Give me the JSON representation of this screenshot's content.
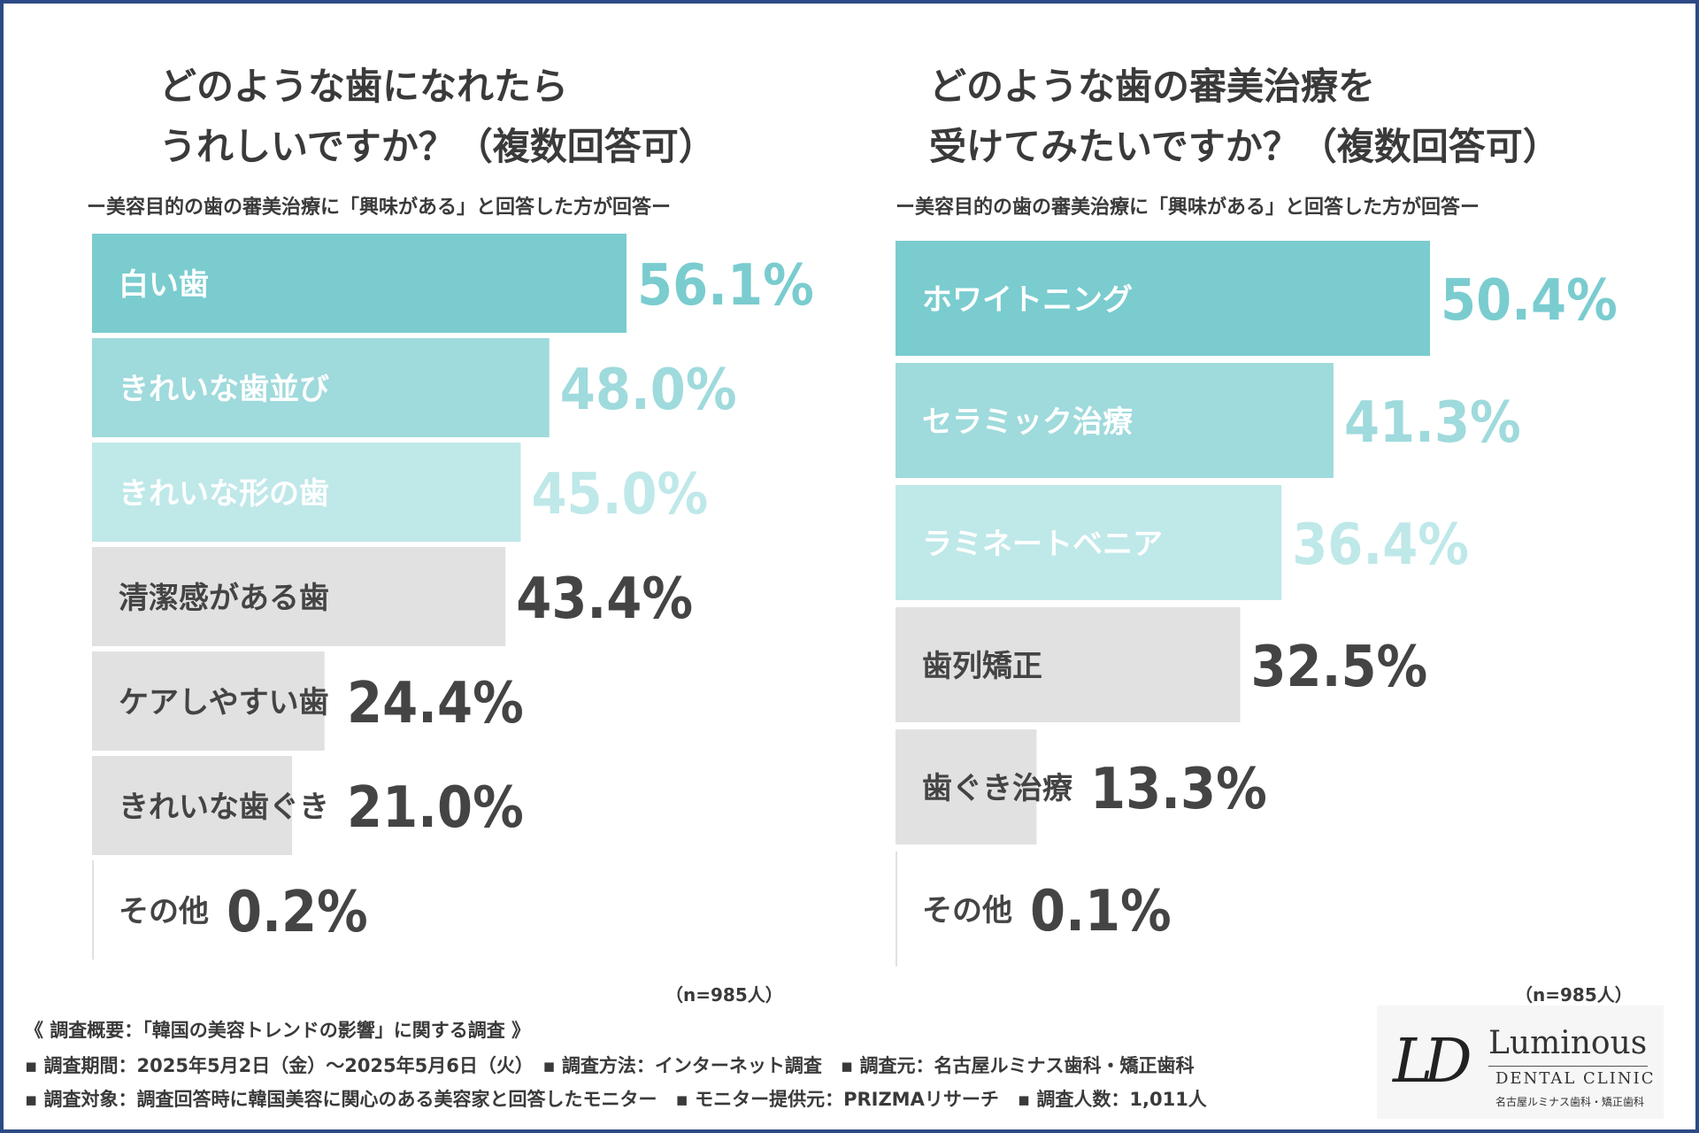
{
  "left": {
    "title_line1": "どのような歯になれたら",
    "title_line2": "うれしいですか？（複数回答可）",
    "subtitle": "ー美容目的の歯の審美治療に「興味がある」と回答した方が回答ー",
    "n_label": "（n=985人）"
  },
  "right": {
    "title_line1": "どのような歯の審美治療を",
    "title_line2": "受けてみたいですか？（複数回答可）",
    "subtitle": "ー美容目的の歯の審美治療に「興味がある」と回答した方が回答ー",
    "n_label": "（n=985人）"
  },
  "chart_data": [
    {
      "type": "bar",
      "orientation": "horizontal",
      "title": "どのような歯になれたらうれしいですか？（複数回答可）",
      "categories": [
        "白い歯",
        "きれいな歯並び",
        "きれいな形の歯",
        "清潔感がある歯",
        "ケアしやすい歯",
        "きれいな歯ぐき",
        "その他"
      ],
      "values": [
        56.1,
        48.0,
        45.0,
        43.4,
        24.4,
        21.0,
        0.2
      ],
      "value_labels": [
        "56.1%",
        "48.0%",
        "45.0%",
        "43.4%",
        "24.4%",
        "21.0%",
        "0.2%"
      ],
      "unit": "%",
      "xlim": [
        0,
        56.1
      ],
      "bar_colors": [
        "#7acccf",
        "#9fdadc",
        "#bfe8e9",
        "#e1e1e1",
        "#e1e1e1",
        "#e1e1e1",
        "#e1e1e1"
      ],
      "label_colors": [
        "#ffffff",
        "#ffffff",
        "#ffffff",
        "#444444",
        "#444444",
        "#444444",
        "#444444"
      ],
      "value_colors": [
        "#7acccf",
        "#9fdadc",
        "#bfe8e9",
        "#444444",
        "#444444",
        "#444444",
        "#444444"
      ]
    },
    {
      "type": "bar",
      "orientation": "horizontal",
      "title": "どのような歯の審美治療を受けてみたいですか？（複数回答可）",
      "categories": [
        "ホワイトニング",
        "セラミック治療",
        "ラミネートベニア",
        "歯列矯正",
        "歯ぐき治療",
        "その他"
      ],
      "values": [
        50.4,
        41.3,
        36.4,
        32.5,
        13.3,
        0.1
      ],
      "value_labels": [
        "50.4%",
        "41.3%",
        "36.4%",
        "32.5%",
        "13.3%",
        "0.1%"
      ],
      "unit": "%",
      "xlim": [
        0,
        50.4
      ],
      "bar_colors": [
        "#7acccf",
        "#9fdadc",
        "#bfe8e9",
        "#e1e1e1",
        "#e1e1e1",
        "#e1e1e1"
      ],
      "label_colors": [
        "#ffffff",
        "#ffffff",
        "#ffffff",
        "#444444",
        "#444444",
        "#444444"
      ],
      "value_colors": [
        "#7acccf",
        "#9fdadc",
        "#bfe8e9",
        "#444444",
        "#444444",
        "#444444"
      ]
    }
  ],
  "footer": {
    "line1": "《 調査概要：「韓国の美容トレンドの影響」に関する調査 》",
    "line2": "▪ 調査期間：2025年5月2日（金）～2025年5月6日（火）　▪ 調査方法：インターネット調査　▪ 調査元：名古屋ルミナス歯科・矯正歯科",
    "line3": "▪ 調査対象：調査回答時に韓国美容に関心のある美容家と回答したモニター　▪ モニター提供元：PRIZMAリサーチ　▪ 調査人数：1,011人"
  },
  "logo": {
    "mark": "LD",
    "name": "Luminous",
    "tagline": "DENTAL CLINIC",
    "small": "名古屋ルミナス歯科・矯正歯科"
  }
}
